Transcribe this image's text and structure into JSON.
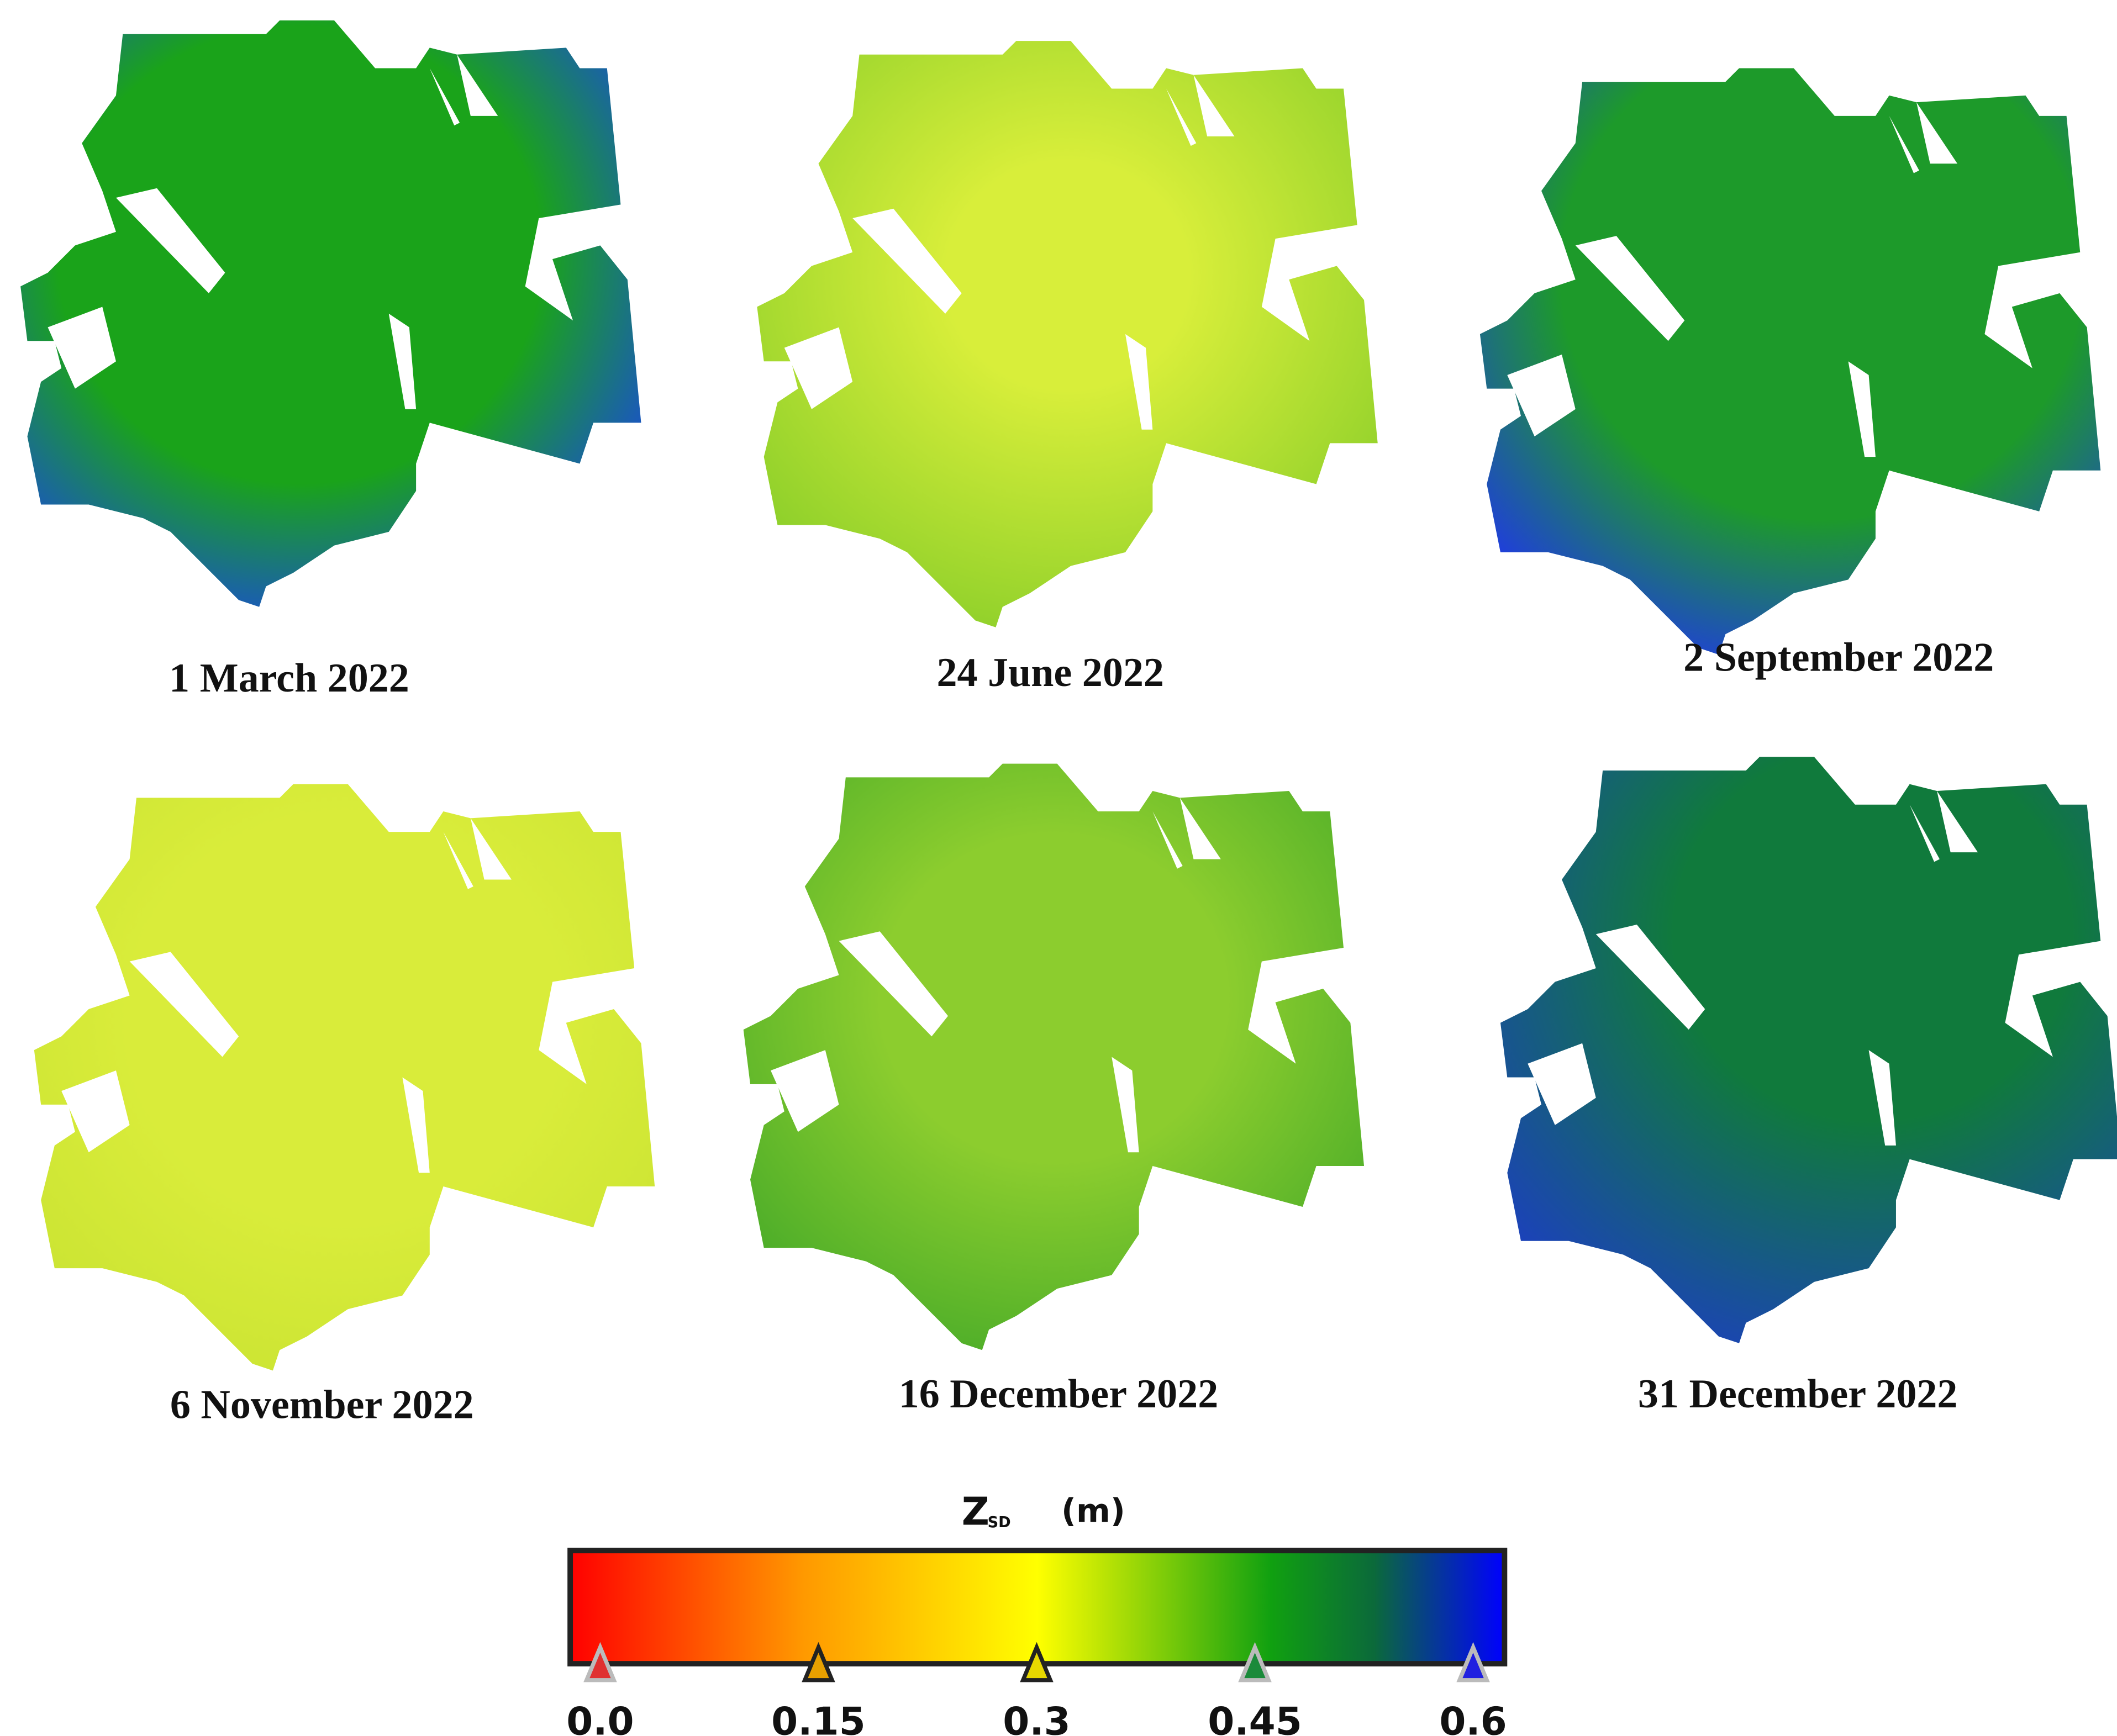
{
  "panels": [
    {
      "label": "1 March 2022"
    },
    {
      "label": "24 June 2022"
    },
    {
      "label": "2 September 2022"
    },
    {
      "label": "6 November 2022"
    },
    {
      "label": "16 December 2022"
    },
    {
      "label": "31 December 2022"
    }
  ],
  "colorbar": {
    "title": "Z",
    "subscript": "SD",
    "unit": "(m)",
    "ticks": [
      {
        "value": 0,
        "label": "0.0"
      },
      0.15,
      0.3,
      0.45,
      0.6
    ]
  }
}
